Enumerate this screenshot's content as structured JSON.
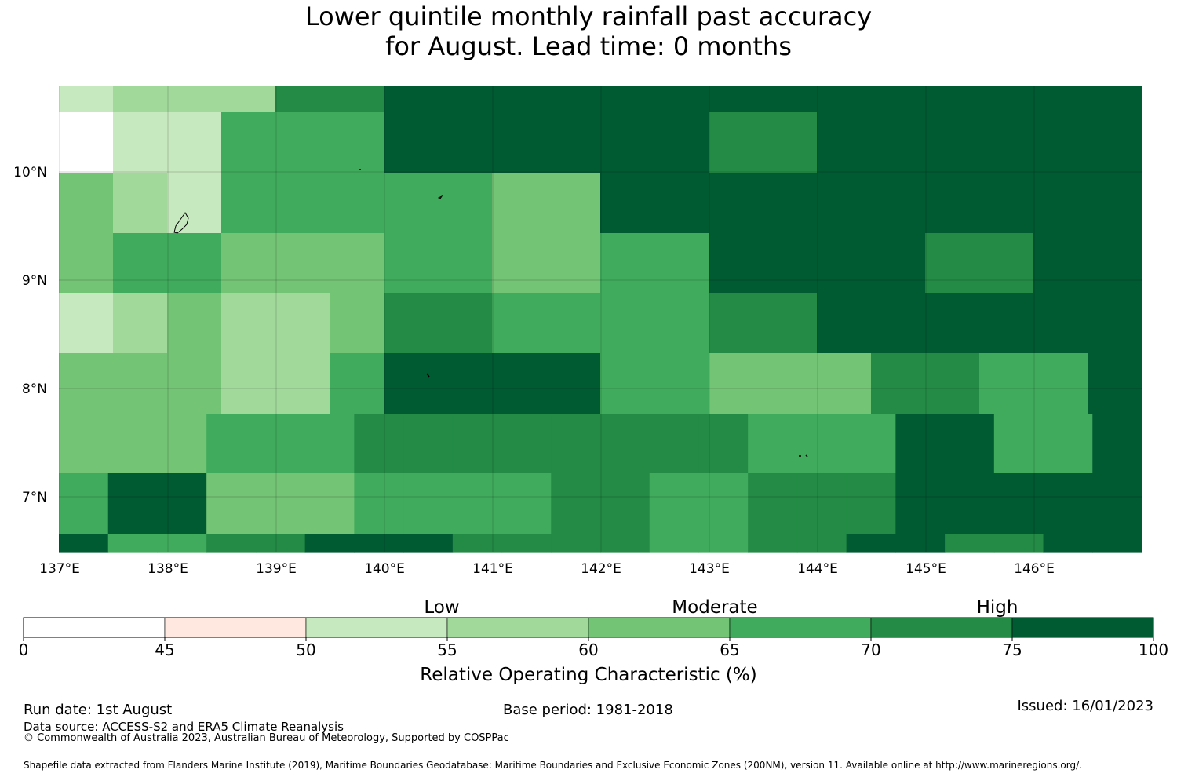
{
  "title": {
    "line1": "Lower quintile monthly rainfall past accuracy",
    "line2": "for August. Lead time: 0 months"
  },
  "map": {
    "lon_labels": [
      "137°E",
      "138°E",
      "139°E",
      "140°E",
      "141°E",
      "142°E",
      "143°E",
      "144°E",
      "145°E",
      "146°E"
    ],
    "lat_labels": [
      "10°N",
      "9°N",
      "8°N",
      "7°N"
    ],
    "lon_range": [
      137,
      147
    ],
    "lat_range": [
      6.5,
      10.8
    ],
    "cells": [
      [
        52,
        57,
        57,
        57,
        72,
        72,
        78,
        78,
        78,
        78,
        78,
        78,
        78,
        78,
        78,
        78,
        78,
        78,
        78,
        78
      ],
      [
        0,
        52,
        52,
        67,
        67,
        67,
        78,
        78,
        78,
        78,
        78,
        78,
        72,
        72,
        78,
        78,
        78,
        78,
        78,
        78
      ],
      [
        62,
        57,
        52,
        67,
        67,
        67,
        67,
        67,
        62,
        62,
        78,
        78,
        78,
        78,
        78,
        78,
        78,
        78,
        78,
        78
      ],
      [
        62,
        67,
        67,
        62,
        62,
        62,
        67,
        67,
        62,
        62,
        67,
        67,
        78,
        78,
        78,
        78,
        72,
        72,
        78,
        78
      ],
      [
        52,
        57,
        62,
        57,
        57,
        62,
        72,
        72,
        67,
        67,
        67,
        67,
        72,
        72,
        78,
        78,
        78,
        78,
        78,
        78
      ],
      [
        62,
        62,
        62,
        57,
        57,
        67,
        78,
        78,
        78,
        78,
        67,
        67,
        62,
        62,
        62,
        72,
        72,
        67,
        67,
        78
      ],
      [
        62,
        62,
        62,
        67,
        67,
        67,
        72,
        72,
        72,
        72,
        72,
        72,
        72,
        72,
        67,
        67,
        67,
        78,
        78,
        67,
        67,
        78
      ],
      [
        67,
        78,
        78,
        62,
        62,
        62,
        67,
        67,
        67,
        67,
        72,
        72,
        67,
        67,
        72,
        72,
        72,
        78,
        78,
        78,
        78,
        78
      ],
      [
        78,
        67,
        67,
        72,
        72,
        78,
        78,
        78,
        72,
        72,
        72,
        72,
        67,
        67,
        72,
        72,
        78,
        78,
        72,
        72,
        78,
        78
      ]
    ]
  },
  "colorbar": {
    "category_labels": [
      "Low",
      "Moderate",
      "High"
    ],
    "tick_labels": [
      "0",
      "45",
      "50",
      "55",
      "60",
      "65",
      "70",
      "75",
      "100"
    ],
    "colors": [
      "#ffffff",
      "#fee8e0",
      "#c7e9c0",
      "#a1d99b",
      "#74c476",
      "#41ab5d",
      "#238b45",
      "#005a32"
    ],
    "label": "Relative Operating Characteristic (%)"
  },
  "footer": {
    "run_date": "Run date: 1st August",
    "base_period": "Base period: 1981-2018",
    "issued": "Issued: 16/01/2023",
    "data_source": "Data source: ACCESS-S2 and ERA5 Climate Reanalysis",
    "copyright": "© Commonwealth of Australia 2023, Australian Bureau of Meteorology, Supported by COSPPac",
    "shapefile": "Shapefile data extracted from Flanders Marine Institute (2019), Maritime Boundaries Geodatabase: Maritime Boundaries and Exclusive Economic Zones (200NM), version 11. Available online at http://www.marineregions.org/."
  }
}
